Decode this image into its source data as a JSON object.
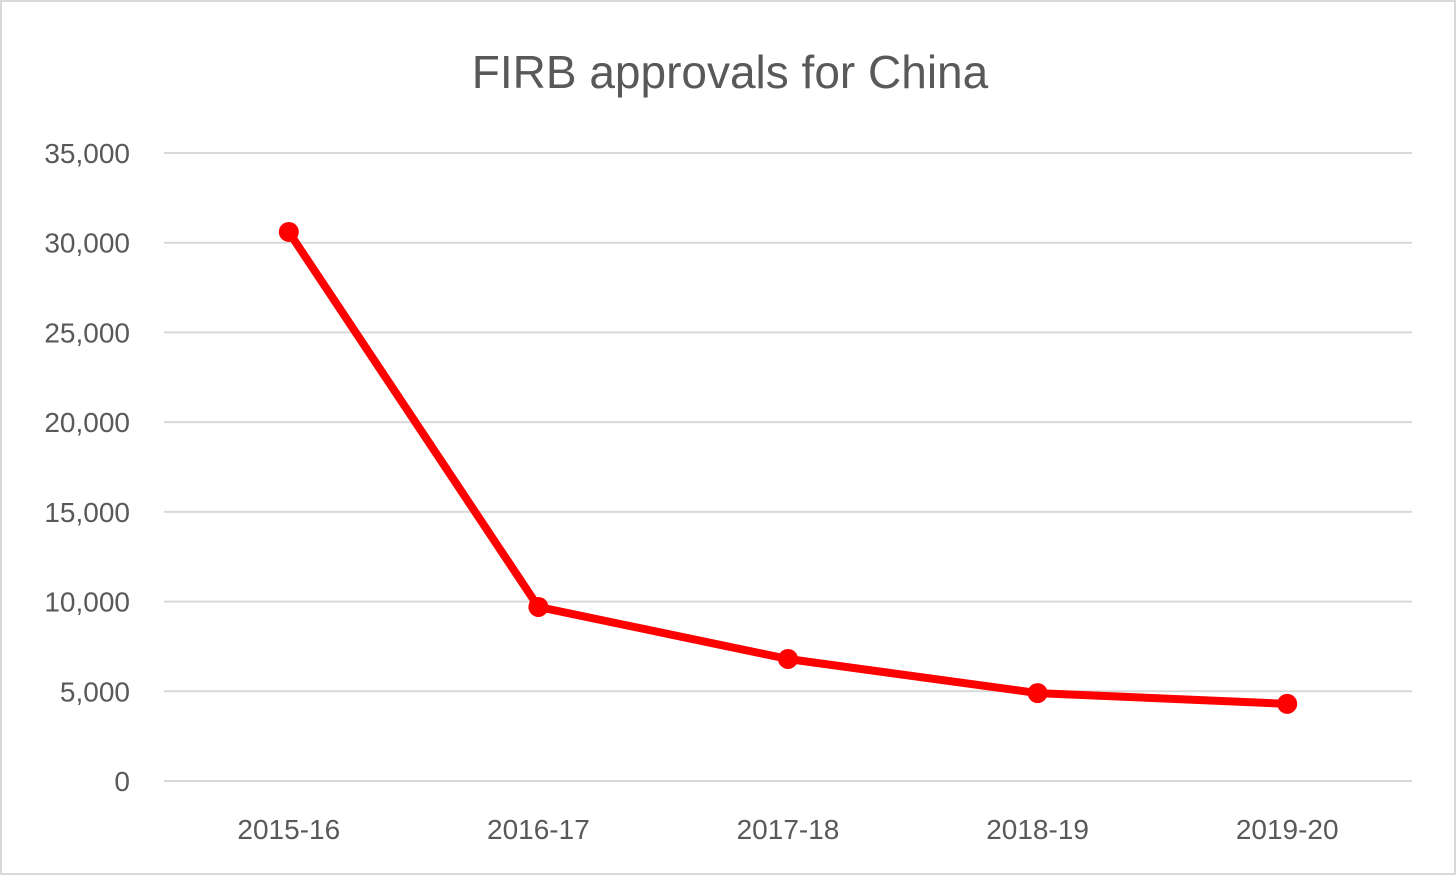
{
  "chart_data": {
    "type": "line",
    "title": "FIRB approvals for China",
    "xlabel": "",
    "ylabel": "",
    "categories": [
      "2015-16",
      "2016-17",
      "2017-18",
      "2018-19",
      "2019-20"
    ],
    "series": [
      {
        "values": [
          30600,
          9700,
          6800,
          4900,
          4300
        ],
        "color": "#ff0000"
      }
    ],
    "ylim": [
      0,
      35000
    ],
    "yticks": [
      0,
      5000,
      10000,
      15000,
      20000,
      25000,
      30000,
      35000
    ],
    "ytick_labels": [
      "0",
      "5,000",
      "10,000",
      "15,000",
      "20,000",
      "25,000",
      "30,000",
      "35,000"
    ],
    "grid": true,
    "legend": "none",
    "colors": {
      "grid": "#d9d9d9",
      "text": "#595959",
      "border": "#d9d9d9"
    }
  }
}
